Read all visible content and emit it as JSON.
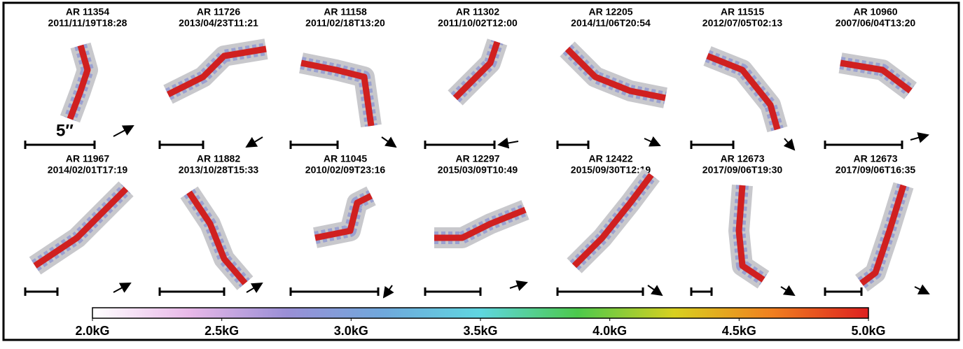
{
  "panels": [
    {
      "region": "AR 11354",
      "time": "2011/11/19T18:28"
    },
    {
      "region": "AR 11726",
      "time": "2013/04/23T11:21"
    },
    {
      "region": "AR 11158",
      "time": "2011/02/18T13:20"
    },
    {
      "region": "AR 11302",
      "time": "2011/10/02T12:00"
    },
    {
      "region": "AR 12205",
      "time": "2014/11/06T20:54"
    },
    {
      "region": "AR 11515",
      "time": "2012/07/05T02:13"
    },
    {
      "region": "AR 10960",
      "time": "2007/06/04T13:20"
    },
    {
      "region": "AR 11967",
      "time": "2014/02/01T17:19"
    },
    {
      "region": "AR 11882",
      "time": "2013/10/28T15:33"
    },
    {
      "region": "AR 11045",
      "time": "2010/02/09T23:16"
    },
    {
      "region": "AR 12297",
      "time": "2015/03/09T10:49"
    },
    {
      "region": "AR 12422",
      "time": "2015/09/30T12:19"
    },
    {
      "region": "AR 12673",
      "time": "2017/09/06T19:30"
    },
    {
      "region": "AR 12673",
      "time": "2017/09/06T16:35"
    }
  ],
  "scale_label": "5″",
  "colorbar": {
    "lim": [
      2.0,
      5.0
    ],
    "colors": [
      "#ffffff",
      "#e8b8e8",
      "#9a8fd6",
      "#6fa8dc",
      "#5fd6e0",
      "#4cc94c",
      "#d8d020",
      "#f08020",
      "#dd2020"
    ],
    "ticks": [
      {
        "value": 2.0,
        "label": "2.0kG"
      },
      {
        "value": 2.5,
        "label": "2.5kG"
      },
      {
        "value": 3.0,
        "label": "3.0kG"
      },
      {
        "value": 3.5,
        "label": "3.5kG"
      },
      {
        "value": 4.0,
        "label": "4.0kG"
      },
      {
        "value": 4.5,
        "label": "4.5kG"
      },
      {
        "value": 5.0,
        "label": "5.0kG"
      }
    ]
  }
}
